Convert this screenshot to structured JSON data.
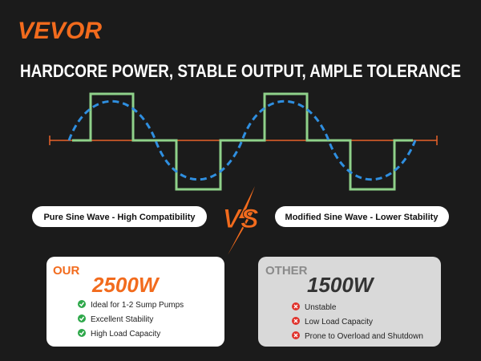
{
  "brand": "VEVOR",
  "title": "HARDCORE POWER, STABLE OUTPUT, AMPLE TOLERANCE",
  "comparison": {
    "left_label": "Pure Sine Wave - High Compatibility",
    "vs": "VS",
    "right_label": "Modified Sine Wave - Lower Stability"
  },
  "cards": [
    {
      "tag": "OUR",
      "power": "2500W",
      "items": [
        "Ideal for 1-2 Sump Pumps",
        "Excellent Stability",
        "High Load Capacity"
      ]
    },
    {
      "tag": "OTHER",
      "power": "1500W",
      "items": [
        "Unstable",
        "Low Load Capacity",
        "Prone to Overload and Shutdown"
      ]
    }
  ]
}
